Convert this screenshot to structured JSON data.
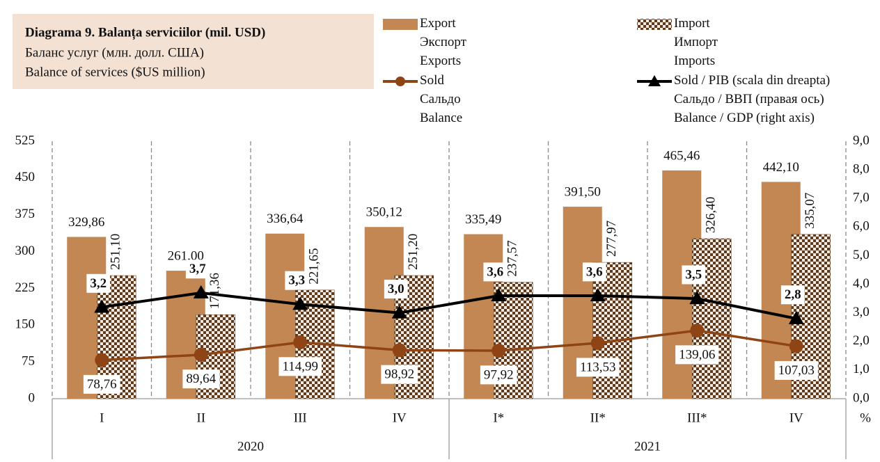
{
  "chart_data": {
    "type": "bar-line",
    "title": "Diagrama 9. Balanța serviciilor (mil. USD)",
    "subtitle": [
      "Баланс услуг (млн. долл. США)",
      "Balance of services ($US million)"
    ],
    "y2label": "%",
    "categories": [
      "I",
      "II",
      "III",
      "IV",
      "I*",
      "II*",
      "III*",
      "IV"
    ],
    "x_groups": [
      "2020",
      "2021"
    ],
    "ylim": [
      0,
      525
    ],
    "yticks": [
      0,
      75,
      150,
      225,
      300,
      375,
      450,
      525
    ],
    "y2lim": [
      0,
      9
    ],
    "y2ticks": [
      {
        "value": 0,
        "label": "0,0"
      },
      {
        "value": 1,
        "label": "1,0"
      },
      {
        "value": 2,
        "label": "2,0"
      },
      {
        "value": 3,
        "label": "3,0"
      },
      {
        "value": 4,
        "label": "4,0"
      },
      {
        "value": 5,
        "label": "5,0"
      },
      {
        "value": 6,
        "label": "6,0"
      },
      {
        "value": 7,
        "label": "7,0"
      },
      {
        "value": 8,
        "label": "8,0"
      },
      {
        "value": 9,
        "label": "9,0"
      }
    ],
    "grid": "x-dashed",
    "series": [
      {
        "name": "Export\nЭкспорт\nExports",
        "kind": "bar",
        "color": "#c28752",
        "values": [
          329.86,
          261.0,
          336.64,
          350.12,
          335.49,
          391.5,
          465.46,
          442.1
        ],
        "value_labels": [
          "329,86",
          "261,00",
          "336,64",
          "350,12",
          "335,49",
          "391,50",
          "465,46",
          "442,10"
        ]
      },
      {
        "name": "Import\nИмпорт\nImports",
        "kind": "bar-pattern",
        "color": "#5e3b1f",
        "values": [
          251.1,
          171.36,
          221.65,
          251.2,
          237.57,
          277.97,
          326.4,
          335.07
        ],
        "value_labels": [
          "251,10",
          "171,36",
          "221,65",
          "251,20",
          "237,57",
          "277,97",
          "326,40",
          "335,07"
        ]
      },
      {
        "name": "Sold\nСальдо\nBalance",
        "kind": "line-circle",
        "color": "#8f4416",
        "values": [
          78.76,
          89.64,
          114.99,
          98.92,
          97.92,
          113.53,
          139.06,
          107.03
        ],
        "value_labels": [
          "78,76",
          "89,64",
          "114,99",
          "98,92",
          "97,92",
          "113,53",
          "139,06",
          "107,03"
        ]
      },
      {
        "name": "Sold / PIB (scala din dreapta)\nСальдо / ВВП (правая ось)\nBalance / GDP (right axis)",
        "kind": "line-triangle",
        "color": "#000000",
        "axis": "y2",
        "values": [
          3.2,
          3.7,
          3.3,
          3.0,
          3.6,
          3.6,
          3.5,
          2.8
        ],
        "value_labels": [
          "3,2",
          "3,7",
          "3,3",
          "3,0",
          "3,6",
          "3,6",
          "3,5",
          "2,8"
        ]
      }
    ]
  }
}
